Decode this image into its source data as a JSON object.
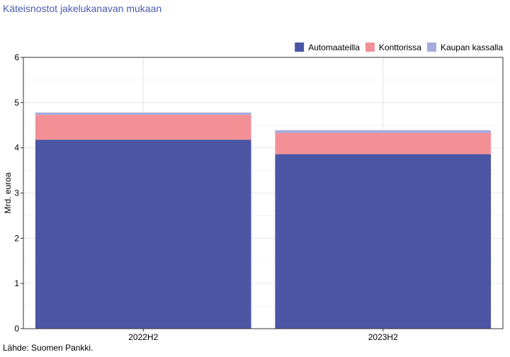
{
  "title": "Käteisnostot jakelukanavan mukaan",
  "source": "Lähde: Suomen Pankki.",
  "chart_data": {
    "type": "bar",
    "stacked": true,
    "categories": [
      "2022H2",
      "2023H2"
    ],
    "series": [
      {
        "name": "Automaateilla",
        "values": [
          4.18,
          3.86
        ],
        "color": "#4b56a5"
      },
      {
        "name": "Konttorissa",
        "values": [
          0.55,
          0.47
        ],
        "color": "#f39096"
      },
      {
        "name": "Kaupan kassalla",
        "values": [
          0.05,
          0.06
        ],
        "color": "#a5abdc"
      }
    ],
    "xlabel": "",
    "ylabel": "Mrd. euroa",
    "ylim": [
      0,
      6
    ],
    "yticks": [
      0,
      1,
      2,
      3,
      4,
      5,
      6
    ],
    "grid": true,
    "legend_position": "top-right"
  }
}
